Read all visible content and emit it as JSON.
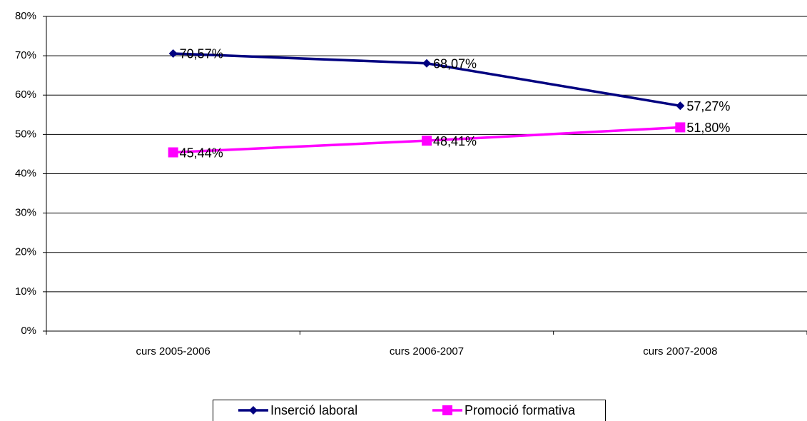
{
  "chart_data": {
    "type": "line",
    "categories": [
      "curs 2005-2006",
      "curs 2006-2007",
      "curs 2007-2008"
    ],
    "series": [
      {
        "name": "Inserció laboral",
        "color": "#000080",
        "marker": "diamond",
        "values": [
          70.57,
          68.07,
          57.27
        ],
        "value_labels": [
          "70,57%",
          "68,07%",
          "57,27%"
        ]
      },
      {
        "name": "Promoció formativa",
        "color": "#ff00ff",
        "marker": "square",
        "values": [
          45.44,
          48.41,
          51.8
        ],
        "value_labels": [
          "45,44%",
          "48,41%",
          "51,80%"
        ]
      }
    ],
    "ylim": [
      0,
      80
    ],
    "yticks": [
      {
        "value": 0,
        "label": "0%"
      },
      {
        "value": 10,
        "label": "10%"
      },
      {
        "value": 20,
        "label": "20%"
      },
      {
        "value": 30,
        "label": "30%"
      },
      {
        "value": 40,
        "label": "40%"
      },
      {
        "value": 50,
        "label": "50%"
      },
      {
        "value": 60,
        "label": "60%"
      },
      {
        "value": 70,
        "label": "70%"
      },
      {
        "value": 80,
        "label": "80%"
      }
    ],
    "grid": true,
    "legend": "bottom"
  }
}
